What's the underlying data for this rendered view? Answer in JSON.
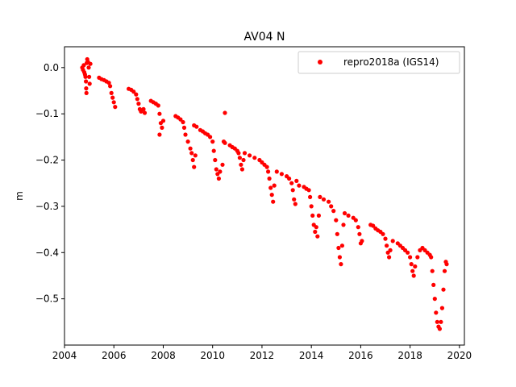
{
  "chart_data": {
    "type": "scatter",
    "title": "AV04 N",
    "xlabel": "",
    "ylabel": "m",
    "xlim": [
      2004.0,
      2020.2
    ],
    "ylim": [
      -0.6,
      0.045
    ],
    "xticks": [
      2004,
      2006,
      2008,
      2010,
      2012,
      2014,
      2016,
      2018,
      2020
    ],
    "yticks": [
      0.0,
      -0.1,
      -0.2,
      -0.3,
      -0.4,
      -0.5
    ],
    "xtick_labels": [
      "2004",
      "2006",
      "2008",
      "2010",
      "2012",
      "2014",
      "2016",
      "2018",
      "2020"
    ],
    "ytick_labels": [
      "0.0",
      "−0.1",
      "−0.2",
      "−0.3",
      "−0.4",
      "−0.5"
    ],
    "legend_position": "top-right",
    "grid": false,
    "colors": {
      "series": "#ff0000",
      "axes": "#000000",
      "background": "#ffffff"
    },
    "series": [
      {
        "name": "repro2018a (IGS14)",
        "marker": "o",
        "points": [
          [
            2004.72,
            0.0
          ],
          [
            2004.75,
            -0.005
          ],
          [
            2004.78,
            0.005
          ],
          [
            2004.8,
            -0.01
          ],
          [
            2004.83,
            -0.015
          ],
          [
            2004.85,
            -0.02
          ],
          [
            2004.87,
            -0.03
          ],
          [
            2004.88,
            -0.045
          ],
          [
            2004.89,
            -0.055
          ],
          [
            2004.9,
            0.01
          ],
          [
            2004.92,
            0.018
          ],
          [
            2004.95,
            0.012
          ],
          [
            2004.98,
            0.0
          ],
          [
            2005.0,
            -0.02
          ],
          [
            2005.02,
            -0.035
          ],
          [
            2005.05,
            0.008
          ],
          [
            2005.4,
            -0.022
          ],
          [
            2005.5,
            -0.025
          ],
          [
            2005.6,
            -0.027
          ],
          [
            2005.7,
            -0.03
          ],
          [
            2005.8,
            -0.033
          ],
          [
            2005.85,
            -0.04
          ],
          [
            2005.9,
            -0.055
          ],
          [
            2005.95,
            -0.065
          ],
          [
            2006.0,
            -0.075
          ],
          [
            2006.05,
            -0.085
          ],
          [
            2006.6,
            -0.046
          ],
          [
            2006.7,
            -0.048
          ],
          [
            2006.8,
            -0.052
          ],
          [
            2006.9,
            -0.058
          ],
          [
            2006.95,
            -0.068
          ],
          [
            2007.0,
            -0.078
          ],
          [
            2007.05,
            -0.09
          ],
          [
            2007.1,
            -0.095
          ],
          [
            2007.2,
            -0.09
          ],
          [
            2007.25,
            -0.098
          ],
          [
            2007.5,
            -0.072
          ],
          [
            2007.6,
            -0.075
          ],
          [
            2007.7,
            -0.078
          ],
          [
            2007.8,
            -0.082
          ],
          [
            2007.85,
            -0.1
          ],
          [
            2007.9,
            -0.12
          ],
          [
            2007.95,
            -0.13
          ],
          [
            2007.85,
            -0.145
          ],
          [
            2008.0,
            -0.115
          ],
          [
            2008.5,
            -0.105
          ],
          [
            2008.6,
            -0.108
          ],
          [
            2008.7,
            -0.112
          ],
          [
            2008.8,
            -0.118
          ],
          [
            2008.85,
            -0.13
          ],
          [
            2008.9,
            -0.145
          ],
          [
            2009.0,
            -0.16
          ],
          [
            2009.1,
            -0.175
          ],
          [
            2009.15,
            -0.185
          ],
          [
            2009.2,
            -0.2
          ],
          [
            2009.25,
            -0.215
          ],
          [
            2009.3,
            -0.19
          ],
          [
            2009.25,
            -0.125
          ],
          [
            2009.35,
            -0.128
          ],
          [
            2009.5,
            -0.135
          ],
          [
            2009.6,
            -0.138
          ],
          [
            2009.7,
            -0.142
          ],
          [
            2009.8,
            -0.145
          ],
          [
            2009.9,
            -0.15
          ],
          [
            2010.0,
            -0.16
          ],
          [
            2010.05,
            -0.18
          ],
          [
            2010.1,
            -0.2
          ],
          [
            2010.15,
            -0.22
          ],
          [
            2010.2,
            -0.23
          ],
          [
            2010.25,
            -0.24
          ],
          [
            2010.3,
            -0.225
          ],
          [
            2010.4,
            -0.21
          ],
          [
            2010.45,
            -0.16
          ],
          [
            2010.5,
            -0.163
          ],
          [
            2010.5,
            -0.098
          ],
          [
            2010.7,
            -0.168
          ],
          [
            2010.8,
            -0.172
          ],
          [
            2010.9,
            -0.175
          ],
          [
            2011.0,
            -0.18
          ],
          [
            2011.05,
            -0.185
          ],
          [
            2011.1,
            -0.195
          ],
          [
            2011.15,
            -0.21
          ],
          [
            2011.2,
            -0.22
          ],
          [
            2011.25,
            -0.2
          ],
          [
            2011.3,
            -0.185
          ],
          [
            2011.5,
            -0.19
          ],
          [
            2011.7,
            -0.195
          ],
          [
            2011.9,
            -0.2
          ],
          [
            2012.0,
            -0.205
          ],
          [
            2012.1,
            -0.21
          ],
          [
            2012.2,
            -0.215
          ],
          [
            2012.25,
            -0.225
          ],
          [
            2012.3,
            -0.24
          ],
          [
            2012.35,
            -0.26
          ],
          [
            2012.4,
            -0.275
          ],
          [
            2012.45,
            -0.29
          ],
          [
            2012.5,
            -0.255
          ],
          [
            2012.6,
            -0.225
          ],
          [
            2012.8,
            -0.23
          ],
          [
            2013.0,
            -0.235
          ],
          [
            2013.1,
            -0.24
          ],
          [
            2013.2,
            -0.25
          ],
          [
            2013.25,
            -0.265
          ],
          [
            2013.3,
            -0.285
          ],
          [
            2013.35,
            -0.295
          ],
          [
            2013.4,
            -0.245
          ],
          [
            2013.5,
            -0.255
          ],
          [
            2013.7,
            -0.258
          ],
          [
            2013.8,
            -0.262
          ],
          [
            2013.9,
            -0.265
          ],
          [
            2013.95,
            -0.28
          ],
          [
            2014.0,
            -0.3
          ],
          [
            2014.05,
            -0.32
          ],
          [
            2014.1,
            -0.34
          ],
          [
            2014.15,
            -0.355
          ],
          [
            2014.2,
            -0.345
          ],
          [
            2014.25,
            -0.365
          ],
          [
            2014.3,
            -0.32
          ],
          [
            2014.35,
            -0.28
          ],
          [
            2014.5,
            -0.285
          ],
          [
            2014.7,
            -0.29
          ],
          [
            2014.8,
            -0.3
          ],
          [
            2014.9,
            -0.31
          ],
          [
            2015.0,
            -0.33
          ],
          [
            2015.05,
            -0.36
          ],
          [
            2015.1,
            -0.39
          ],
          [
            2015.15,
            -0.41
          ],
          [
            2015.2,
            -0.425
          ],
          [
            2015.25,
            -0.385
          ],
          [
            2015.3,
            -0.34
          ],
          [
            2015.35,
            -0.315
          ],
          [
            2015.5,
            -0.32
          ],
          [
            2015.7,
            -0.325
          ],
          [
            2015.8,
            -0.33
          ],
          [
            2015.9,
            -0.345
          ],
          [
            2015.95,
            -0.36
          ],
          [
            2016.0,
            -0.38
          ],
          [
            2016.05,
            -0.375
          ],
          [
            2016.4,
            -0.34
          ],
          [
            2016.5,
            -0.342
          ],
          [
            2016.6,
            -0.348
          ],
          [
            2016.7,
            -0.352
          ],
          [
            2016.8,
            -0.355
          ],
          [
            2016.9,
            -0.36
          ],
          [
            2017.0,
            -0.37
          ],
          [
            2017.05,
            -0.385
          ],
          [
            2017.1,
            -0.4
          ],
          [
            2017.15,
            -0.41
          ],
          [
            2017.2,
            -0.395
          ],
          [
            2017.3,
            -0.375
          ],
          [
            2017.5,
            -0.38
          ],
          [
            2017.6,
            -0.385
          ],
          [
            2017.7,
            -0.39
          ],
          [
            2017.8,
            -0.395
          ],
          [
            2017.9,
            -0.4
          ],
          [
            2018.0,
            -0.41
          ],
          [
            2018.05,
            -0.425
          ],
          [
            2018.1,
            -0.44
          ],
          [
            2018.15,
            -0.45
          ],
          [
            2018.2,
            -0.43
          ],
          [
            2018.3,
            -0.41
          ],
          [
            2018.4,
            -0.395
          ],
          [
            2018.5,
            -0.39
          ],
          [
            2018.6,
            -0.395
          ],
          [
            2018.7,
            -0.4
          ],
          [
            2018.8,
            -0.405
          ],
          [
            2018.85,
            -0.41
          ],
          [
            2018.9,
            -0.44
          ],
          [
            2018.95,
            -0.47
          ],
          [
            2019.0,
            -0.5
          ],
          [
            2019.05,
            -0.53
          ],
          [
            2019.1,
            -0.55
          ],
          [
            2019.15,
            -0.56
          ],
          [
            2019.2,
            -0.565
          ],
          [
            2019.25,
            -0.55
          ],
          [
            2019.3,
            -0.52
          ],
          [
            2019.35,
            -0.48
          ],
          [
            2019.4,
            -0.44
          ],
          [
            2019.45,
            -0.42
          ],
          [
            2019.48,
            -0.425
          ]
        ]
      }
    ]
  }
}
